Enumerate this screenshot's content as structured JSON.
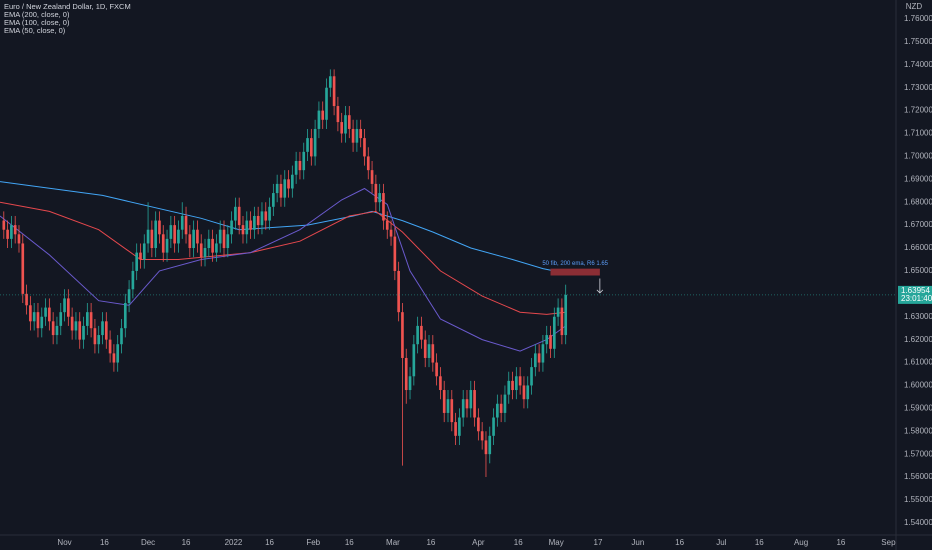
{
  "chart_data": {
    "type": "candlestick",
    "title": "Euro / New Zealand Dollar, 1D, FXCM",
    "currency": "NZD",
    "countdown": "23:01:40",
    "up_color": "#26a69a",
    "down_color": "#ef5350",
    "xlim": [
      -1,
      235
    ],
    "xticks": [
      {
        "value": 16,
        "label": "Nov"
      },
      {
        "value": 26.5,
        "label": "16"
      },
      {
        "value": 38,
        "label": "Dec"
      },
      {
        "value": 48,
        "label": "16"
      },
      {
        "value": 60.5,
        "label": "2022"
      },
      {
        "value": 70,
        "label": "16"
      },
      {
        "value": 81.5,
        "label": "Feb"
      },
      {
        "value": 91,
        "label": "16"
      },
      {
        "value": 102.5,
        "label": "Mar"
      },
      {
        "value": 112.5,
        "label": "16"
      },
      {
        "value": 125,
        "label": "Apr"
      },
      {
        "value": 135.5,
        "label": "16"
      },
      {
        "value": 145.5,
        "label": "May"
      },
      {
        "value": 156.5,
        "label": "17"
      },
      {
        "value": 167,
        "label": "Jun"
      },
      {
        "value": 178,
        "label": "16"
      },
      {
        "value": 189,
        "label": "Jul"
      },
      {
        "value": 199,
        "label": "16"
      },
      {
        "value": 210,
        "label": "Aug"
      },
      {
        "value": 220.5,
        "label": "16"
      },
      {
        "value": 233,
        "label": "Sep"
      }
    ],
    "ylim": [
      1.5347,
      1.7683
    ],
    "yticks": [
      {
        "value": 1.54,
        "label": "1.54000"
      },
      {
        "value": 1.55,
        "label": "1.55000"
      },
      {
        "value": 1.56,
        "label": "1.56000"
      },
      {
        "value": 1.57,
        "label": "1.57000"
      },
      {
        "value": 1.58,
        "label": "1.58000"
      },
      {
        "value": 1.59,
        "label": "1.59000"
      },
      {
        "value": 1.6,
        "label": "1.60000"
      },
      {
        "value": 1.61,
        "label": "1.61000"
      },
      {
        "value": 1.62,
        "label": "1.62000"
      },
      {
        "value": 1.63,
        "label": "1.63000"
      },
      {
        "value": 1.64,
        "label": "1.64000"
      },
      {
        "value": 1.65,
        "label": "1.65000"
      },
      {
        "value": 1.66,
        "label": "1.66000"
      },
      {
        "value": 1.67,
        "label": "1.67000"
      },
      {
        "value": 1.68,
        "label": "1.68000"
      },
      {
        "value": 1.69,
        "label": "1.69000"
      },
      {
        "value": 1.7,
        "label": "1.70000"
      },
      {
        "value": 1.71,
        "label": "1.71000"
      },
      {
        "value": 1.72,
        "label": "1.72000"
      },
      {
        "value": 1.73,
        "label": "1.73000"
      },
      {
        "value": 1.74,
        "label": "1.74000"
      },
      {
        "value": 1.75,
        "label": "1.75000"
      },
      {
        "value": 1.76,
        "label": "1.76000"
      }
    ],
    "open": [
      1.672,
      1.668,
      1.664,
      1.67,
      1.666,
      1.662,
      1.64,
      1.635,
      1.628,
      1.632,
      1.625,
      1.63,
      1.634,
      1.628,
      1.622,
      1.626,
      1.632,
      1.638,
      1.63,
      1.624,
      1.628,
      1.62,
      1.626,
      1.632,
      1.625,
      1.618,
      1.622,
      1.628,
      1.62,
      1.614,
      1.61,
      1.618,
      1.625,
      1.636,
      1.642,
      1.65,
      1.658,
      1.655,
      1.662,
      1.668,
      1.66,
      1.672,
      1.666,
      1.658,
      1.664,
      1.67,
      1.662,
      1.668,
      1.674,
      1.666,
      1.66,
      1.668,
      1.662,
      1.656,
      1.66,
      1.664,
      1.658,
      1.662,
      1.668,
      1.66,
      1.666,
      1.672,
      1.678,
      1.67,
      1.666,
      1.672,
      1.668,
      1.674,
      1.67,
      1.676,
      1.672,
      1.678,
      1.684,
      1.688,
      1.682,
      1.69,
      1.686,
      1.692,
      1.698,
      1.694,
      1.702,
      1.708,
      1.7,
      1.712,
      1.72,
      1.716,
      1.73,
      1.735,
      1.722,
      1.715,
      1.71,
      1.718,
      1.712,
      1.706,
      1.712,
      1.708,
      1.7,
      1.694,
      1.688,
      1.68,
      1.684,
      1.672,
      1.668,
      1.665,
      1.65,
      1.632,
      1.612,
      1.598,
      1.604,
      1.618,
      1.626,
      1.62,
      1.612,
      1.618,
      1.61,
      1.604,
      1.598,
      1.588,
      1.594,
      1.584,
      1.578,
      1.586,
      1.594,
      1.59,
      1.598,
      1.586,
      1.58,
      1.576,
      1.57,
      1.578,
      1.586,
      1.592,
      1.588,
      1.596,
      1.602,
      1.598,
      1.604,
      1.6,
      1.594,
      1.6,
      1.608,
      1.614,
      1.61,
      1.618,
      1.622,
      1.616,
      1.63,
      1.634,
      1.622
    ],
    "high": [
      1.676,
      1.672,
      1.674,
      1.674,
      1.67,
      1.666,
      1.644,
      1.639,
      1.636,
      1.636,
      1.634,
      1.638,
      1.638,
      1.632,
      1.63,
      1.636,
      1.642,
      1.642,
      1.634,
      1.632,
      1.632,
      1.63,
      1.636,
      1.636,
      1.629,
      1.626,
      1.632,
      1.632,
      1.624,
      1.618,
      1.622,
      1.629,
      1.64,
      1.646,
      1.654,
      1.662,
      1.662,
      1.666,
      1.68,
      1.672,
      1.676,
      1.676,
      1.67,
      1.668,
      1.674,
      1.674,
      1.672,
      1.68,
      1.678,
      1.67,
      1.672,
      1.672,
      1.666,
      1.664,
      1.668,
      1.668,
      1.666,
      1.672,
      1.672,
      1.67,
      1.676,
      1.682,
      1.682,
      1.674,
      1.676,
      1.676,
      1.678,
      1.678,
      1.68,
      1.68,
      1.682,
      1.688,
      1.692,
      1.692,
      1.694,
      1.694,
      1.696,
      1.702,
      1.702,
      1.706,
      1.712,
      1.712,
      1.716,
      1.724,
      1.724,
      1.734,
      1.738,
      1.738,
      1.726,
      1.719,
      1.722,
      1.722,
      1.716,
      1.716,
      1.716,
      1.712,
      1.704,
      1.698,
      1.692,
      1.688,
      1.688,
      1.676,
      1.672,
      1.669,
      1.654,
      1.636,
      1.616,
      1.608,
      1.622,
      1.63,
      1.63,
      1.624,
      1.622,
      1.622,
      1.614,
      1.608,
      1.602,
      1.598,
      1.598,
      1.588,
      1.59,
      1.598,
      1.598,
      1.602,
      1.602,
      1.59,
      1.584,
      1.58,
      1.582,
      1.59,
      1.596,
      1.596,
      1.6,
      1.606,
      1.606,
      1.608,
      1.608,
      1.604,
      1.604,
      1.612,
      1.618,
      1.618,
      1.622,
      1.626,
      1.626,
      1.634,
      1.638,
      1.638,
      1.644
    ],
    "low": [
      1.664,
      1.66,
      1.66,
      1.662,
      1.658,
      1.636,
      1.631,
      1.624,
      1.624,
      1.621,
      1.621,
      1.626,
      1.624,
      1.618,
      1.618,
      1.622,
      1.628,
      1.626,
      1.62,
      1.62,
      1.616,
      1.616,
      1.622,
      1.621,
      1.614,
      1.614,
      1.618,
      1.616,
      1.61,
      1.606,
      1.606,
      1.614,
      1.621,
      1.632,
      1.638,
      1.646,
      1.651,
      1.651,
      1.658,
      1.656,
      1.656,
      1.662,
      1.654,
      1.654,
      1.66,
      1.658,
      1.658,
      1.664,
      1.662,
      1.656,
      1.656,
      1.658,
      1.652,
      1.652,
      1.656,
      1.654,
      1.654,
      1.658,
      1.656,
      1.656,
      1.662,
      1.668,
      1.666,
      1.662,
      1.662,
      1.664,
      1.664,
      1.666,
      1.666,
      1.668,
      1.668,
      1.674,
      1.68,
      1.678,
      1.678,
      1.682,
      1.682,
      1.688,
      1.69,
      1.69,
      1.698,
      1.696,
      1.696,
      1.708,
      1.712,
      1.712,
      1.726,
      1.718,
      1.711,
      1.706,
      1.706,
      1.708,
      1.702,
      1.702,
      1.704,
      1.696,
      1.69,
      1.684,
      1.676,
      1.676,
      1.668,
      1.664,
      1.661,
      1.646,
      1.628,
      1.565,
      1.592,
      1.594,
      1.6,
      1.614,
      1.616,
      1.608,
      1.608,
      1.606,
      1.6,
      1.594,
      1.584,
      1.584,
      1.58,
      1.574,
      1.574,
      1.582,
      1.586,
      1.586,
      1.582,
      1.576,
      1.572,
      1.56,
      1.566,
      1.574,
      1.582,
      1.584,
      1.584,
      1.592,
      1.594,
      1.594,
      1.596,
      1.59,
      1.59,
      1.596,
      1.604,
      1.606,
      1.606,
      1.614,
      1.612,
      1.612,
      1.626,
      1.618,
      1.618
    ],
    "close": [
      1.668,
      1.664,
      1.67,
      1.666,
      1.662,
      1.64,
      1.635,
      1.628,
      1.632,
      1.625,
      1.63,
      1.634,
      1.628,
      1.622,
      1.626,
      1.632,
      1.638,
      1.63,
      1.624,
      1.628,
      1.62,
      1.626,
      1.632,
      1.625,
      1.618,
      1.622,
      1.628,
      1.62,
      1.614,
      1.61,
      1.618,
      1.625,
      1.636,
      1.642,
      1.65,
      1.658,
      1.655,
      1.662,
      1.668,
      1.66,
      1.672,
      1.666,
      1.658,
      1.664,
      1.67,
      1.662,
      1.668,
      1.674,
      1.666,
      1.66,
      1.668,
      1.662,
      1.656,
      1.66,
      1.664,
      1.658,
      1.662,
      1.668,
      1.66,
      1.666,
      1.672,
      1.678,
      1.67,
      1.666,
      1.672,
      1.668,
      1.674,
      1.67,
      1.676,
      1.672,
      1.678,
      1.684,
      1.688,
      1.682,
      1.69,
      1.686,
      1.692,
      1.698,
      1.694,
      1.702,
      1.708,
      1.7,
      1.712,
      1.72,
      1.716,
      1.73,
      1.735,
      1.722,
      1.715,
      1.71,
      1.718,
      1.712,
      1.706,
      1.712,
      1.708,
      1.7,
      1.694,
      1.688,
      1.68,
      1.684,
      1.672,
      1.668,
      1.665,
      1.65,
      1.632,
      1.612,
      1.598,
      1.604,
      1.618,
      1.626,
      1.62,
      1.612,
      1.618,
      1.61,
      1.604,
      1.598,
      1.588,
      1.594,
      1.584,
      1.578,
      1.586,
      1.594,
      1.59,
      1.598,
      1.586,
      1.58,
      1.576,
      1.57,
      1.578,
      1.586,
      1.592,
      1.588,
      1.596,
      1.602,
      1.598,
      1.604,
      1.6,
      1.594,
      1.6,
      1.608,
      1.614,
      1.61,
      1.618,
      1.622,
      1.616,
      1.63,
      1.634,
      1.622,
      1.63954
    ],
    "series": [
      {
        "name": "EMA (200, close, 0)",
        "color": "#42a5f5",
        "x": [
          -1,
          26,
          52,
          62,
          80,
          92,
          97,
          105,
          113,
          123,
          134,
          142,
          148
        ],
        "values": [
          1.689,
          1.683,
          1.673,
          1.668,
          1.67,
          1.674,
          1.676,
          1.672,
          1.667,
          1.66,
          1.655,
          1.651,
          1.649
        ]
      },
      {
        "name": "EMA (100, close, 0)",
        "color": "#e5484d",
        "x": [
          -1,
          12,
          25,
          36,
          46,
          65,
          78,
          91,
          98,
          105,
          115,
          126,
          136,
          143,
          148
        ],
        "values": [
          1.68,
          1.676,
          1.668,
          1.655,
          1.655,
          1.658,
          1.663,
          1.674,
          1.676,
          1.667,
          1.65,
          1.639,
          1.632,
          1.631,
          1.632
        ]
      },
      {
        "name": "EMA (50, close, 0)",
        "color": "#6a5acd",
        "x": [
          -1,
          12,
          25,
          33,
          41,
          52,
          65,
          78,
          89,
          95,
          101,
          107,
          115,
          126,
          136,
          143,
          148
        ],
        "values": [
          1.674,
          1.657,
          1.637,
          1.635,
          1.65,
          1.655,
          1.658,
          1.668,
          1.681,
          1.686,
          1.679,
          1.65,
          1.629,
          1.62,
          1.615,
          1.62,
          1.626
        ]
      }
    ],
    "annotation": {
      "text": "50 fib, 200 ema, R6 1.65",
      "x": [
        144,
        157
      ],
      "y": [
        1.648,
        1.651
      ]
    }
  }
}
